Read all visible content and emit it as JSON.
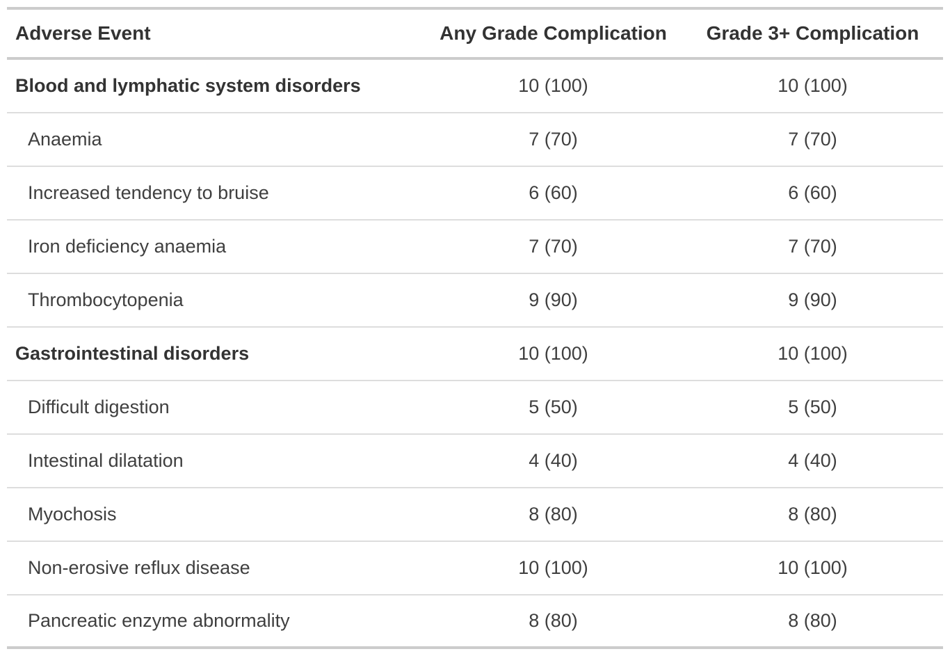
{
  "colors": {
    "background": "#ffffff",
    "border_thick": "#cccccc",
    "border_thin": "#dddddd",
    "text_bold": "#333333",
    "text_regular": "#3f3f3f"
  },
  "table": {
    "columns": [
      "Adverse Event",
      "Any Grade Complication",
      "Grade 3+ Complication"
    ],
    "rows": [
      {
        "label": "Blood and lymphatic system disorders",
        "group": true,
        "any_grade": "10 (100)",
        "grade3plus": "10 (100)"
      },
      {
        "label": "Anaemia",
        "group": false,
        "any_grade": "7 (70)",
        "grade3plus": "7 (70)"
      },
      {
        "label": "Increased tendency to bruise",
        "group": false,
        "any_grade": "6 (60)",
        "grade3plus": "6 (60)"
      },
      {
        "label": "Iron deficiency anaemia",
        "group": false,
        "any_grade": "7 (70)",
        "grade3plus": "7 (70)"
      },
      {
        "label": "Thrombocytopenia",
        "group": false,
        "any_grade": "9 (90)",
        "grade3plus": "9 (90)"
      },
      {
        "label": "Gastrointestinal disorders",
        "group": true,
        "any_grade": "10 (100)",
        "grade3plus": "10 (100)"
      },
      {
        "label": "Difficult digestion",
        "group": false,
        "any_grade": "5 (50)",
        "grade3plus": "5 (50)"
      },
      {
        "label": "Intestinal dilatation",
        "group": false,
        "any_grade": "4 (40)",
        "grade3plus": "4 (40)"
      },
      {
        "label": "Myochosis",
        "group": false,
        "any_grade": "8 (80)",
        "grade3plus": "8 (80)"
      },
      {
        "label": "Non-erosive reflux disease",
        "group": false,
        "any_grade": "10 (100)",
        "grade3plus": "10 (100)"
      },
      {
        "label": "Pancreatic enzyme abnormality",
        "group": false,
        "any_grade": "8 (80)",
        "grade3plus": "8 (80)"
      }
    ]
  },
  "chart_data": {
    "type": "table",
    "columns": [
      "Adverse Event",
      "Any Grade Complication",
      "Grade 3+ Complication"
    ],
    "rows": [
      [
        "Blood and lymphatic system disorders",
        "10 (100)",
        "10 (100)"
      ],
      [
        "Anaemia",
        "7 (70)",
        "7 (70)"
      ],
      [
        "Increased tendency to bruise",
        "6 (60)",
        "6 (60)"
      ],
      [
        "Iron deficiency anaemia",
        "7 (70)",
        "7 (70)"
      ],
      [
        "Thrombocytopenia",
        "9 (90)",
        "9 (90)"
      ],
      [
        "Gastrointestinal disorders",
        "10 (100)",
        "10 (100)"
      ],
      [
        "Difficult digestion",
        "5 (50)",
        "5 (50)"
      ],
      [
        "Intestinal dilatation",
        "4 (40)",
        "4 (40)"
      ],
      [
        "Myochosis",
        "8 (80)",
        "8 (80)"
      ],
      [
        "Non-erosive reflux disease",
        "10 (100)",
        "10 (100)"
      ],
      [
        "Pancreatic enzyme abnormality",
        "8 (80)",
        "8 (80)"
      ]
    ],
    "group_row_indices": [
      0,
      5
    ],
    "layout": {
      "column_alignments": [
        "left",
        "center",
        "center"
      ],
      "group_rows_bold": true,
      "sub_rows_indented": true,
      "grid": "horizontal-rules-only"
    }
  }
}
